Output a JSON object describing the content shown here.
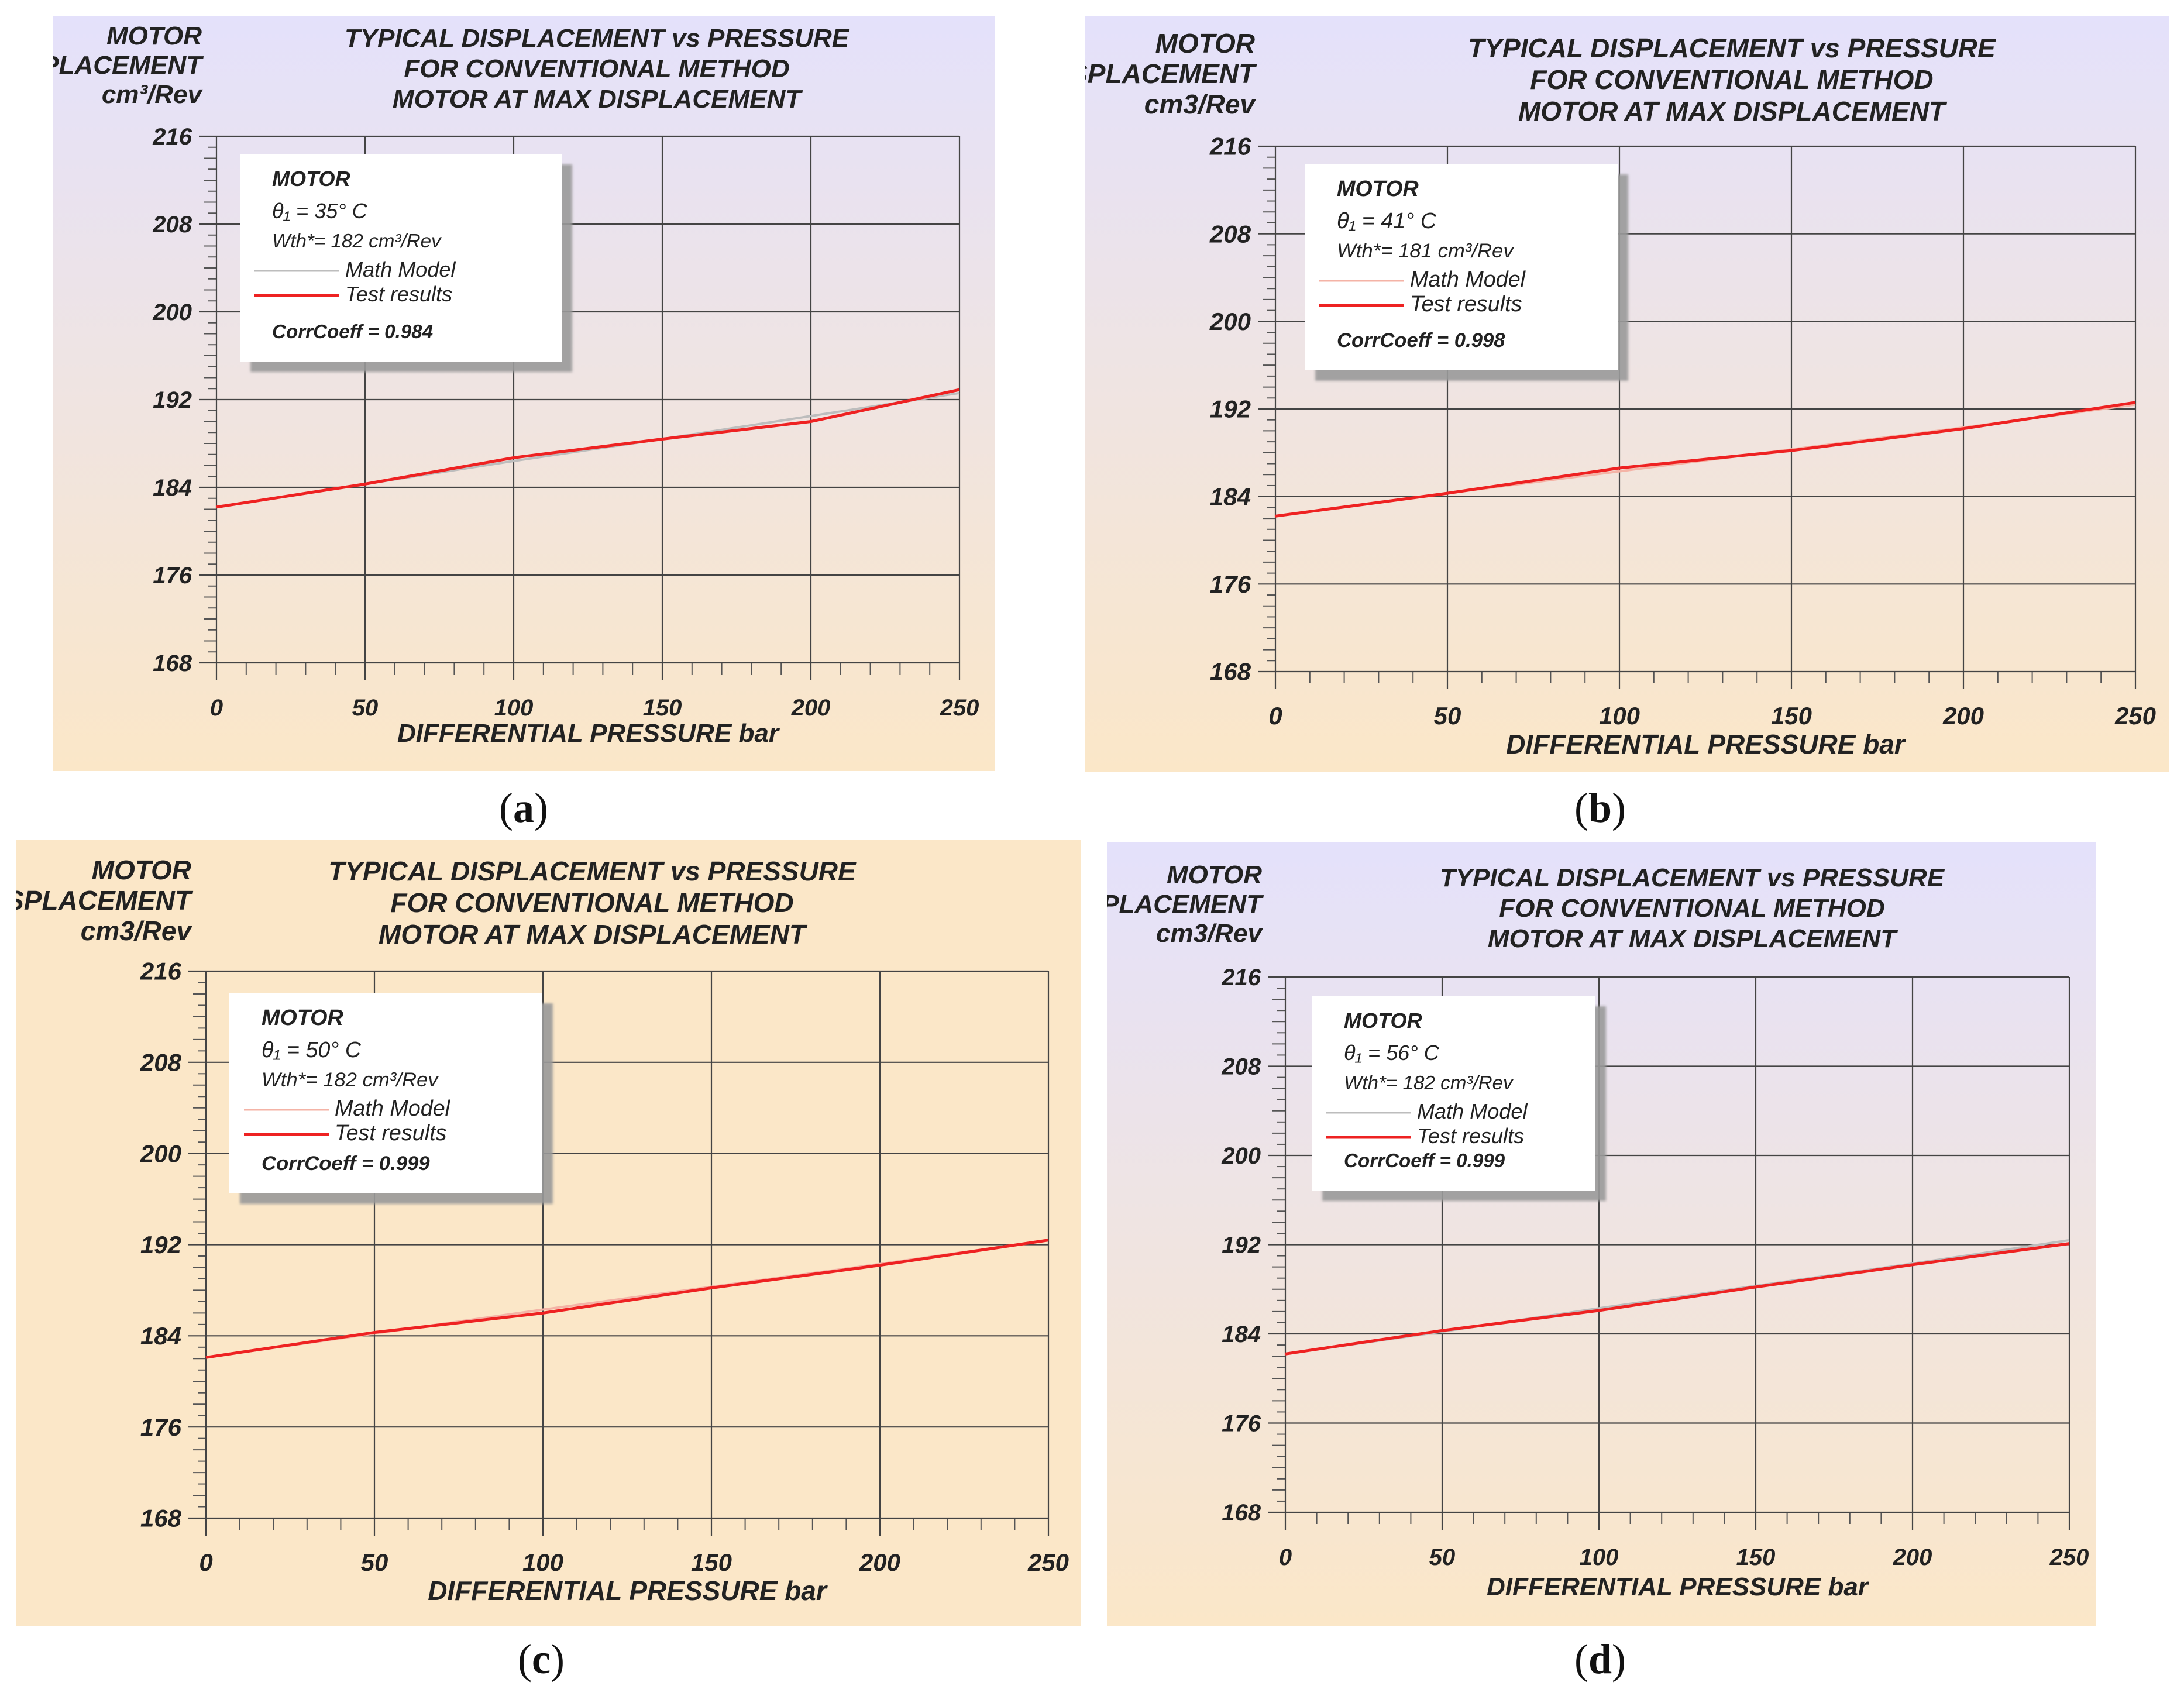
{
  "figure": {
    "captions": [
      {
        "open": "(",
        "letter": "a",
        "close": ")"
      },
      {
        "open": "(",
        "letter": "b",
        "close": ")"
      },
      {
        "open": "(",
        "letter": "c",
        "close": ")"
      },
      {
        "open": "(",
        "letter": "d",
        "close": ")"
      }
    ]
  },
  "chart_data": [
    {
      "type": "line",
      "title": [
        "TYPICAL DISPLACEMENT vs PRESSURE",
        "FOR CONVENTIONAL METHOD",
        "MOTOR  AT MAX DISPLACEMENT"
      ],
      "ylabel": [
        "MOTOR",
        "DISPLACEMENT",
        "cm³/Rev"
      ],
      "xlabel": "DIFFERENTIAL PRESSURE  bar",
      "xlim": [
        0,
        250
      ],
      "ylim": [
        168,
        216
      ],
      "xticks": [
        0,
        50,
        100,
        150,
        200,
        250
      ],
      "yticks": [
        168,
        176,
        184,
        192,
        200,
        208,
        216
      ],
      "grid": true,
      "legend": {
        "title": "MOTOR",
        "theta": "θ₁ = 35° C",
        "wth": "Wth*= 182 cm³/Rev",
        "entries": [
          "Math Model",
          "Test results"
        ],
        "corr": "CorrCoeff = 0.984",
        "position": "top-left"
      },
      "series": [
        {
          "name": "Math Model",
          "color": "#bdbdbd",
          "x": [
            0,
            50,
            100,
            150,
            200,
            250
          ],
          "y": [
            182.2,
            184.3,
            186.4,
            188.4,
            190.5,
            192.6
          ]
        },
        {
          "name": "Test results",
          "color": "#ee2222",
          "x": [
            0,
            50,
            100,
            150,
            200,
            250
          ],
          "y": [
            182.2,
            184.3,
            186.7,
            188.4,
            190.0,
            192.9
          ]
        }
      ]
    },
    {
      "type": "line",
      "title": [
        "TYPICAL DISPLACEMENT vs PRESSURE",
        "FOR CONVENTIONAL METHOD",
        "MOTOR  AT MAX DISPLACEMENT"
      ],
      "ylabel": [
        "MOTOR",
        "DISPLACEMENT",
        "cm3/Rev"
      ],
      "xlabel": "DIFFERENTIAL PRESSURE  bar",
      "xlim": [
        0,
        250
      ],
      "ylim": [
        168,
        216
      ],
      "xticks": [
        0,
        50,
        100,
        150,
        200,
        250
      ],
      "yticks": [
        168,
        176,
        184,
        192,
        200,
        208,
        216
      ],
      "grid": true,
      "legend": {
        "title": "MOTOR",
        "theta": "θ₁ = 41° C",
        "wth": "Wth*= 181 cm³/Rev",
        "entries": [
          "Math Model",
          "Test results"
        ],
        "corr": "CorrCoeff = 0.998",
        "position": "top-left"
      },
      "series": [
        {
          "name": "Math Model",
          "color": "#f4b3a6",
          "x": [
            0,
            50,
            100,
            150,
            200,
            250
          ],
          "y": [
            182.2,
            184.3,
            186.3,
            188.3,
            190.3,
            192.4
          ]
        },
        {
          "name": "Test results",
          "color": "#ee2222",
          "x": [
            0,
            50,
            100,
            150,
            200,
            250
          ],
          "y": [
            182.2,
            184.3,
            186.6,
            188.2,
            190.2,
            192.6
          ]
        }
      ]
    },
    {
      "type": "line",
      "title": [
        "TYPICAL DISPLACEMENT vs PRESSURE",
        "FOR CONVENTIONAL METHOD",
        "MOTOR  AT MAX DISPLACEMENT"
      ],
      "ylabel": [
        "MOTOR",
        "DISPLACEMENT",
        "cm3/Rev"
      ],
      "xlabel": "DIFFERENTIAL PRESSURE  bar",
      "xlim": [
        0,
        250
      ],
      "ylim": [
        168,
        216
      ],
      "xticks": [
        0,
        50,
        100,
        150,
        200,
        250
      ],
      "yticks": [
        168,
        176,
        184,
        192,
        200,
        208,
        216
      ],
      "grid": true,
      "legend": {
        "title": "MOTOR",
        "theta": "θ₁ = 50° C",
        "wth": "Wth*= 182 cm³/Rev",
        "entries": [
          "Math Model",
          "Test results"
        ],
        "corr": "CorrCoeff = 0.999",
        "position": "top-left"
      },
      "series": [
        {
          "name": "Math Model",
          "color": "#f4b3a6",
          "x": [
            0,
            50,
            100,
            150,
            200,
            250
          ],
          "y": [
            182.1,
            184.2,
            186.3,
            188.3,
            190.3,
            192.4
          ]
        },
        {
          "name": "Test results",
          "color": "#ee2222",
          "x": [
            0,
            50,
            100,
            150,
            200,
            250
          ],
          "y": [
            182.1,
            184.3,
            186.0,
            188.2,
            190.2,
            192.4
          ]
        }
      ]
    },
    {
      "type": "line",
      "title": [
        "TYPICAL DISPLACEMENT vs PRESSURE",
        "FOR CONVENTIONAL METHOD",
        "MOTOR  AT MAX DISPLACEMENT"
      ],
      "ylabel": [
        "MOTOR",
        "DISPLACEMENT",
        "cm3/Rev"
      ],
      "xlabel": "DIFFERENTIAL PRESSURE  bar",
      "xlim": [
        0,
        250
      ],
      "ylim": [
        168,
        216
      ],
      "xticks": [
        0,
        50,
        100,
        150,
        200,
        250
      ],
      "yticks": [
        168,
        176,
        184,
        192,
        200,
        208,
        216
      ],
      "grid": true,
      "legend": {
        "title": "MOTOR",
        "theta": "θ₁ = 56° C",
        "wth": "Wth*= 182 cm³/Rev",
        "entries": [
          "Math Model",
          "Test results"
        ],
        "corr": "CorrCoeff = 0.999",
        "position": "top-left"
      },
      "series": [
        {
          "name": "Math Model",
          "color": "#bdbdbd",
          "x": [
            0,
            50,
            100,
            150,
            200,
            250
          ],
          "y": [
            182.2,
            184.2,
            186.3,
            188.3,
            190.3,
            192.4
          ]
        },
        {
          "name": "Test results",
          "color": "#ee2222",
          "x": [
            0,
            50,
            100,
            150,
            200,
            250
          ],
          "y": [
            182.2,
            184.3,
            186.1,
            188.2,
            190.2,
            192.1
          ]
        }
      ]
    }
  ]
}
